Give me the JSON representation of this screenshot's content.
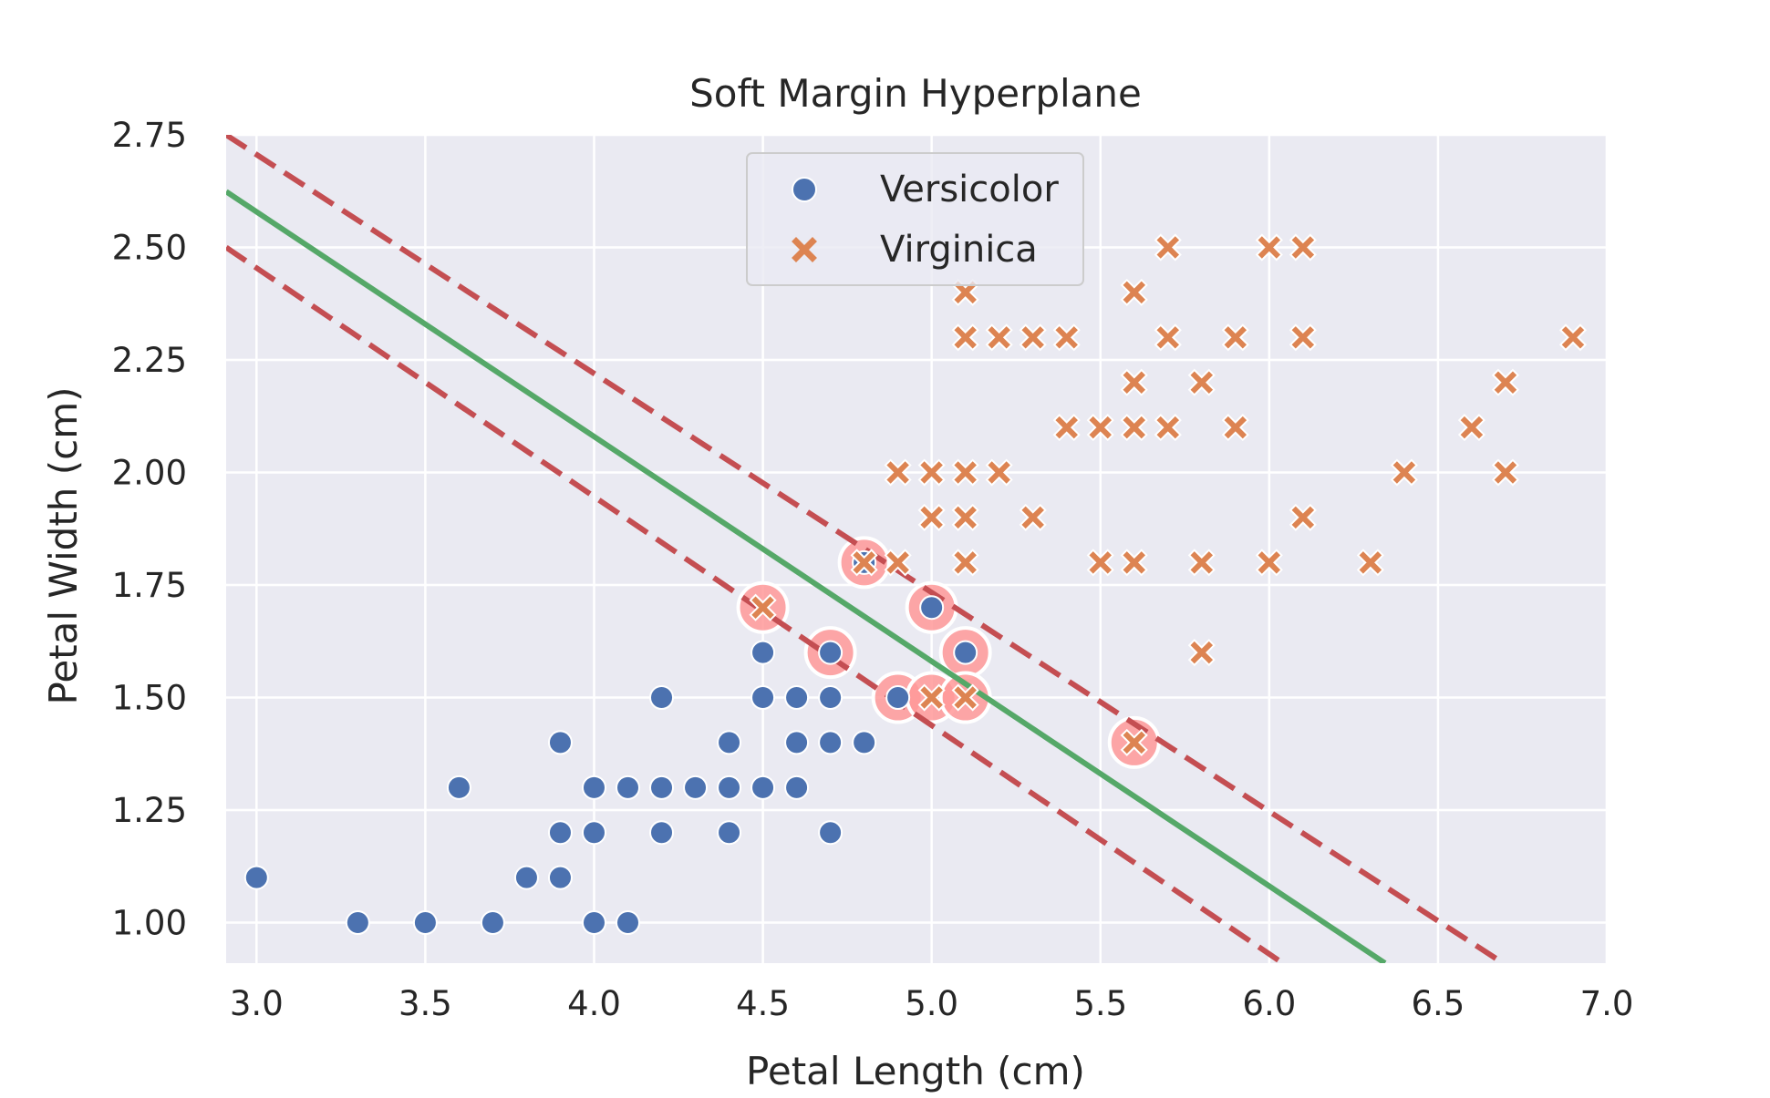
{
  "chart_data": {
    "type": "scatter",
    "title": "Soft Margin Hyperplane",
    "xlabel": "Petal Length (cm)",
    "ylabel": "Petal Width (cm)",
    "xlim": [
      2.91,
      7.0
    ],
    "ylim": [
      0.91,
      2.75
    ],
    "xticks": [
      "3.0",
      "3.5",
      "4.0",
      "4.5",
      "5.0",
      "5.5",
      "6.0",
      "6.5",
      "7.0"
    ],
    "yticks": [
      "1.00",
      "1.25",
      "1.50",
      "1.75",
      "2.00",
      "2.25",
      "2.50",
      "2.75"
    ],
    "grid": true,
    "legend_position": "top-center",
    "colors": {
      "versicolor": "#4c72b0",
      "virginica": "#dd8452",
      "hyperplane": "#55a868",
      "margin": "#c44e52",
      "support_vector": "#ff9999",
      "plot_background": "#eaeaf2"
    },
    "series": [
      {
        "name": "Versicolor",
        "marker": "circle",
        "points": [
          [
            3.0,
            1.1
          ],
          [
            3.3,
            1.0
          ],
          [
            3.5,
            1.0
          ],
          [
            3.6,
            1.3
          ],
          [
            3.7,
            1.0
          ],
          [
            3.8,
            1.1
          ],
          [
            3.9,
            1.4
          ],
          [
            3.9,
            1.2
          ],
          [
            3.9,
            1.1
          ],
          [
            4.0,
            1.3
          ],
          [
            4.0,
            1.2
          ],
          [
            4.0,
            1.0
          ],
          [
            4.1,
            1.3
          ],
          [
            4.1,
            1.0
          ],
          [
            4.2,
            1.5
          ],
          [
            4.2,
            1.3
          ],
          [
            4.2,
            1.2
          ],
          [
            4.3,
            1.3
          ],
          [
            4.4,
            1.4
          ],
          [
            4.4,
            1.3
          ],
          [
            4.4,
            1.2
          ],
          [
            4.5,
            1.6
          ],
          [
            4.5,
            1.5
          ],
          [
            4.5,
            1.3
          ],
          [
            4.6,
            1.5
          ],
          [
            4.6,
            1.4
          ],
          [
            4.6,
            1.3
          ],
          [
            4.7,
            1.6
          ],
          [
            4.7,
            1.5
          ],
          [
            4.7,
            1.4
          ],
          [
            4.7,
            1.2
          ],
          [
            4.8,
            1.8
          ],
          [
            4.8,
            1.4
          ],
          [
            4.9,
            1.5
          ],
          [
            5.0,
            1.7
          ],
          [
            5.1,
            1.6
          ]
        ]
      },
      {
        "name": "Virginica",
        "marker": "x",
        "points": [
          [
            4.5,
            1.7
          ],
          [
            4.8,
            1.8
          ],
          [
            4.9,
            1.8
          ],
          [
            4.9,
            2.0
          ],
          [
            5.0,
            2.0
          ],
          [
            5.0,
            1.9
          ],
          [
            5.0,
            1.5
          ],
          [
            5.1,
            2.4
          ],
          [
            5.1,
            2.3
          ],
          [
            5.1,
            2.0
          ],
          [
            5.1,
            1.9
          ],
          [
            5.1,
            1.8
          ],
          [
            5.1,
            1.5
          ],
          [
            5.2,
            2.3
          ],
          [
            5.2,
            2.0
          ],
          [
            5.3,
            2.3
          ],
          [
            5.3,
            1.9
          ],
          [
            5.4,
            2.3
          ],
          [
            5.4,
            2.1
          ],
          [
            5.5,
            2.1
          ],
          [
            5.5,
            1.8
          ],
          [
            5.6,
            2.4
          ],
          [
            5.6,
            2.2
          ],
          [
            5.6,
            2.1
          ],
          [
            5.6,
            1.8
          ],
          [
            5.6,
            1.4
          ],
          [
            5.7,
            2.5
          ],
          [
            5.7,
            2.3
          ],
          [
            5.7,
            2.1
          ],
          [
            5.8,
            2.2
          ],
          [
            5.8,
            1.8
          ],
          [
            5.8,
            1.6
          ],
          [
            5.9,
            2.3
          ],
          [
            5.9,
            2.1
          ],
          [
            6.0,
            2.5
          ],
          [
            6.0,
            1.8
          ],
          [
            6.1,
            2.5
          ],
          [
            6.1,
            2.3
          ],
          [
            6.1,
            1.9
          ],
          [
            6.3,
            1.8
          ],
          [
            6.4,
            2.0
          ],
          [
            6.6,
            2.1
          ],
          [
            6.7,
            2.2
          ],
          [
            6.7,
            2.0
          ],
          [
            6.9,
            2.3
          ]
        ]
      }
    ],
    "support_vectors": [
      [
        4.5,
        1.7
      ],
      [
        4.7,
        1.6
      ],
      [
        4.8,
        1.8
      ],
      [
        4.9,
        1.5
      ],
      [
        5.0,
        1.7
      ],
      [
        5.0,
        1.5
      ],
      [
        5.1,
        1.6
      ],
      [
        5.1,
        1.5
      ],
      [
        5.6,
        1.4
      ]
    ],
    "lines": [
      {
        "role": "hyperplane",
        "style": "solid",
        "points": [
          [
            2.91,
            2.624
          ],
          [
            6.343,
            0.91
          ]
        ]
      },
      {
        "role": "margin-upper",
        "style": "dashed",
        "points": [
          [
            2.91,
            2.75
          ],
          [
            6.693,
            0.91
          ]
        ]
      },
      {
        "role": "margin-lower",
        "style": "dashed",
        "points": [
          [
            2.91,
            2.5
          ],
          [
            6.04,
            0.91
          ]
        ]
      }
    ]
  }
}
